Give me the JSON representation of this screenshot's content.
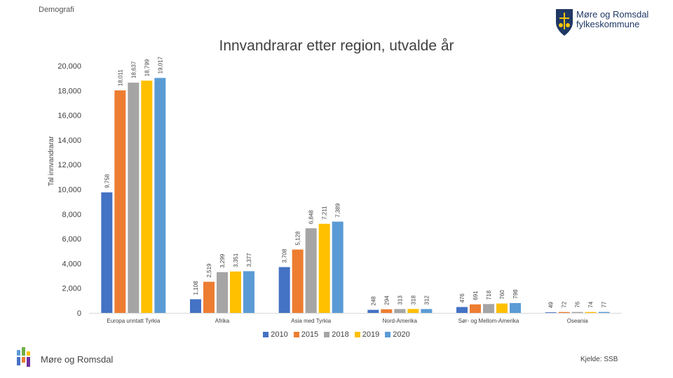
{
  "header": {
    "section_label": "Demografi",
    "logo_text_line1": "Møre og Romsdal",
    "logo_text_line2": "fylkeskommune"
  },
  "footer": {
    "org_name": "Møre og Romsdal",
    "source": "Kjelde: SSB"
  },
  "colors": {
    "2010": "#4472c4",
    "2015": "#ed7d31",
    "2018": "#a5a5a5",
    "2019": "#ffc000",
    "2020": "#5b9bd5",
    "logo_blue": "#1f3864",
    "logo_gold": "#f2c500"
  },
  "chart_data": {
    "type": "bar",
    "title": "Innvandrarar etter region, utvalde år",
    "ylabel": "Tal innvandrarar",
    "xlabel": "",
    "ylim": [
      0,
      20000
    ],
    "yticks": [
      "0",
      "2,000",
      "4,000",
      "6,000",
      "8,000",
      "10,000",
      "12,000",
      "14,000",
      "16,000",
      "18,000",
      "20,000"
    ],
    "categories": [
      "Europa unntatt Tyrkia",
      "Afrika",
      "Asia med Tyrkia",
      "Nord-Amerika",
      "Sør- og Mellom-Amerika",
      "Oseania"
    ],
    "series": [
      {
        "name": "2010",
        "values": [
          9758,
          1108,
          3708,
          248,
          476,
          49
        ]
      },
      {
        "name": "2015",
        "values": [
          18011,
          2519,
          5128,
          294,
          691,
          72
        ]
      },
      {
        "name": "2018",
        "values": [
          18637,
          3299,
          6848,
          313,
          718,
          76
        ]
      },
      {
        "name": "2019",
        "values": [
          18799,
          3351,
          7211,
          318,
          760,
          74
        ]
      },
      {
        "name": "2020",
        "values": [
          19017,
          3377,
          7389,
          312,
          798,
          77
        ]
      }
    ],
    "value_labels": [
      [
        "9,758",
        "1,108",
        "3,708",
        "248",
        "476",
        "49"
      ],
      [
        "18,011",
        "2,519",
        "5,128",
        "294",
        "691",
        "72"
      ],
      [
        "18,637",
        "3,299",
        "6,848",
        "313",
        "718",
        "76"
      ],
      [
        "18,799",
        "3,351",
        "7,211",
        "318",
        "760",
        "74"
      ],
      [
        "19,017",
        "3,377",
        "7,389",
        "312",
        "798",
        "77"
      ]
    ],
    "grid": false,
    "legend_position": "bottom"
  }
}
